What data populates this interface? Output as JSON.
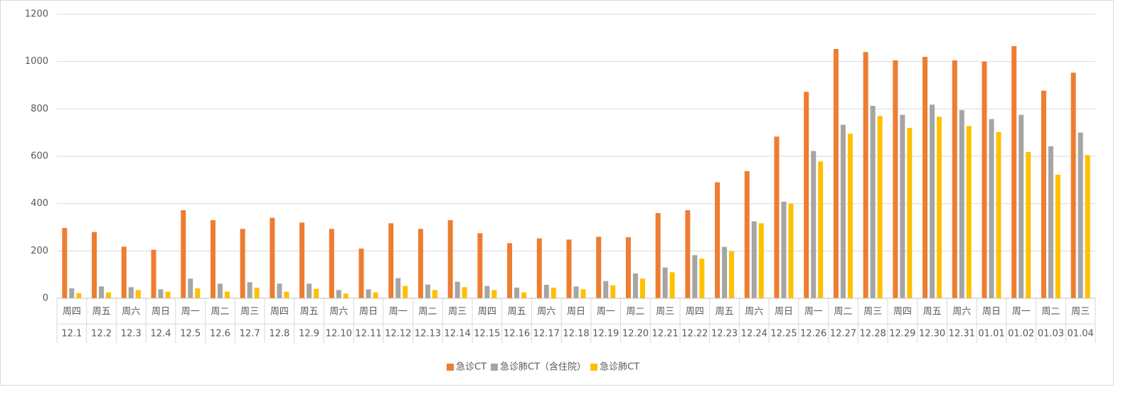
{
  "chart_data": {
    "type": "bar",
    "categories": [
      "12.1",
      "12.2",
      "12.3",
      "12.4",
      "12.5",
      "12.6",
      "12.7",
      "12.8",
      "12.9",
      "12.10",
      "12.11",
      "12.12",
      "12.13",
      "12.14",
      "12.15",
      "12.16",
      "12.17",
      "12.18",
      "12.19",
      "12.20",
      "12.21",
      "12.22",
      "12.23",
      "12.24",
      "12.25",
      "12.26",
      "12.27",
      "12.28",
      "12.29",
      "12.30",
      "12.31",
      "01.01",
      "01.02",
      "01.03",
      "01.04"
    ],
    "weekdays": [
      "周四",
      "周五",
      "周六",
      "周日",
      "周一",
      "周二",
      "周三",
      "周四",
      "周五",
      "周六",
      "周日",
      "周一",
      "周二",
      "周三",
      "周四",
      "周五",
      "周六",
      "周日",
      "周一",
      "周二",
      "周三",
      "周四",
      "周五",
      "周六",
      "周日",
      "周一",
      "周二",
      "周三",
      "周四",
      "周五",
      "周六",
      "周日",
      "周一",
      "周二",
      "周三"
    ],
    "series": [
      {
        "name": "急诊CT",
        "color": "#ED7D31",
        "values": [
          297,
          280,
          218,
          205,
          372,
          330,
          293,
          340,
          320,
          293,
          210,
          317,
          293,
          330,
          275,
          233,
          253,
          248,
          260,
          258,
          360,
          372,
          490,
          537,
          683,
          872,
          1053,
          1040,
          1005,
          1020,
          1005,
          1000,
          1065,
          877,
          953
        ]
      },
      {
        "name": "急诊肺CT（含住院）",
        "color": "#A5A5A5",
        "values": [
          42,
          50,
          47,
          38,
          83,
          62,
          68,
          62,
          62,
          35,
          38,
          85,
          58,
          70,
          52,
          45,
          57,
          50,
          73,
          105,
          130,
          182,
          217,
          325,
          408,
          622,
          733,
          813,
          775,
          818,
          795,
          757,
          775,
          642,
          700
        ]
      },
      {
        "name": "急诊肺CT",
        "color": "#FFC000",
        "values": [
          22,
          25,
          35,
          28,
          42,
          28,
          45,
          28,
          40,
          20,
          25,
          52,
          35,
          47,
          35,
          25,
          45,
          38,
          55,
          83,
          110,
          167,
          198,
          317,
          400,
          578,
          695,
          770,
          720,
          767,
          728,
          702,
          618,
          522,
          605
        ]
      }
    ],
    "ylim": [
      0,
      1200
    ],
    "yticks": [
      0,
      200,
      400,
      600,
      800,
      1000,
      1200
    ],
    "grid": true,
    "legend": "bottom"
  }
}
